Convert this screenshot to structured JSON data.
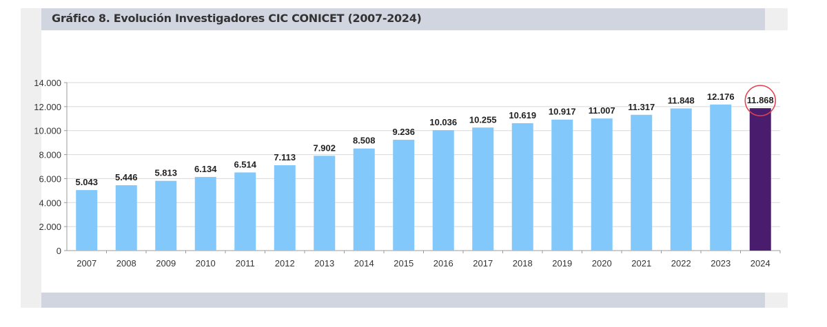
{
  "chart_data": {
    "type": "bar",
    "title": "Gráfico 8. Evolución Investigadores CIC CONICET (2007-2024)",
    "xlabel": "",
    "ylabel": "",
    "ylim": [
      0,
      14000
    ],
    "yticks": [
      "0",
      "2.000",
      "4.000",
      "6.000",
      "8.000",
      "10.000",
      "12.000",
      "14.000"
    ],
    "ytick_values": [
      0,
      2000,
      4000,
      6000,
      8000,
      10000,
      12000,
      14000
    ],
    "categories": [
      "2007",
      "2008",
      "2009",
      "2010",
      "2011",
      "2012",
      "2013",
      "2014",
      "2015",
      "2016",
      "2017",
      "2018",
      "2019",
      "2020",
      "2021",
      "2022",
      "2023",
      "2024"
    ],
    "values": [
      5043,
      5446,
      5813,
      6134,
      6514,
      7113,
      7902,
      8508,
      9236,
      10036,
      10255,
      10619,
      10917,
      11007,
      11317,
      11848,
      12176,
      11868
    ],
    "labels": [
      "5.043",
      "5.446",
      "5.813",
      "6.134",
      "6.514",
      "7.113",
      "7.902",
      "8.508",
      "9.236",
      "10.036",
      "10.255",
      "10.619",
      "10.917",
      "11.007",
      "11.317",
      "11.848",
      "12.176",
      "11.868"
    ],
    "grid": true,
    "colors": {
      "default": "#82c8fb",
      "highlight": "#4a1c6e",
      "circle": "#e0404a"
    },
    "highlight_index": 17
  }
}
